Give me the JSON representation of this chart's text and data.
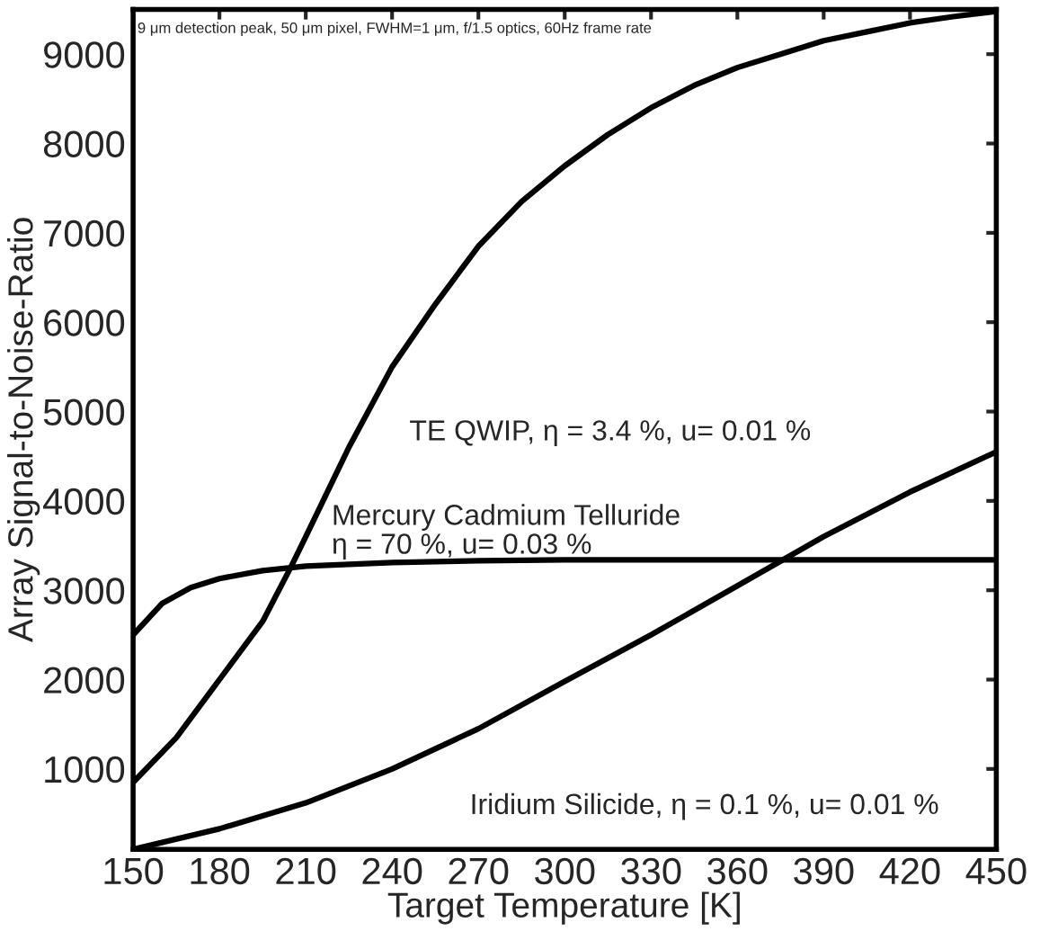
{
  "chart_data": {
    "type": "line",
    "xlabel": "Target Temperature [K]",
    "ylabel": "Array Signal-to-Noise-Ratio",
    "annotations": [
      "9 μm detection peak, 50 μm pixel, FWHM=1 μm, f/1.5 optics, 60Hz frame rate"
    ],
    "series": [
      {
        "name": "TE QWIP, η = 3.4 %, u= 0.01 %",
        "color": "#000000",
        "x": [
          150,
          165,
          180,
          195,
          205,
          210,
          225,
          240,
          255,
          270,
          285,
          300,
          315,
          330,
          345,
          360,
          375,
          390,
          405,
          420,
          435,
          450
        ],
        "values": [
          850,
          1350,
          2000,
          2650,
          3270,
          3600,
          4600,
          5500,
          6200,
          6850,
          7350,
          7750,
          8100,
          8400,
          8650,
          8850,
          9000,
          9150,
          9250,
          9350,
          9420,
          9480
        ]
      },
      {
        "name": "Mercury Cadmium Telluride\nη = 70 %, u= 0.03 %",
        "color": "#000000",
        "x": [
          150,
          160,
          170,
          180,
          195,
          210,
          240,
          270,
          300,
          450
        ],
        "values": [
          2500,
          2850,
          3030,
          3130,
          3220,
          3270,
          3310,
          3330,
          3340,
          3340
        ]
      },
      {
        "name": "Iridium Silicide, η = 0.1 %, u= 0.01 %",
        "color": "#000000",
        "x": [
          150,
          180,
          210,
          240,
          270,
          300,
          330,
          360,
          390,
          420,
          450
        ],
        "values": [
          100,
          330,
          620,
          1000,
          1450,
          1980,
          2500,
          3050,
          3600,
          4100,
          4550
        ]
      }
    ],
    "xlim": [
      150,
      450
    ],
    "xticks": [
      150,
      180,
      210,
      240,
      270,
      300,
      330,
      360,
      390,
      420,
      450
    ],
    "ylim": [
      100,
      9500
    ],
    "yticks": [
      1000,
      2000,
      3000,
      4000,
      5000,
      6000,
      7000,
      8000,
      9000
    ],
    "grid": false,
    "legend": false,
    "marker": "none",
    "line_style": "solid"
  }
}
